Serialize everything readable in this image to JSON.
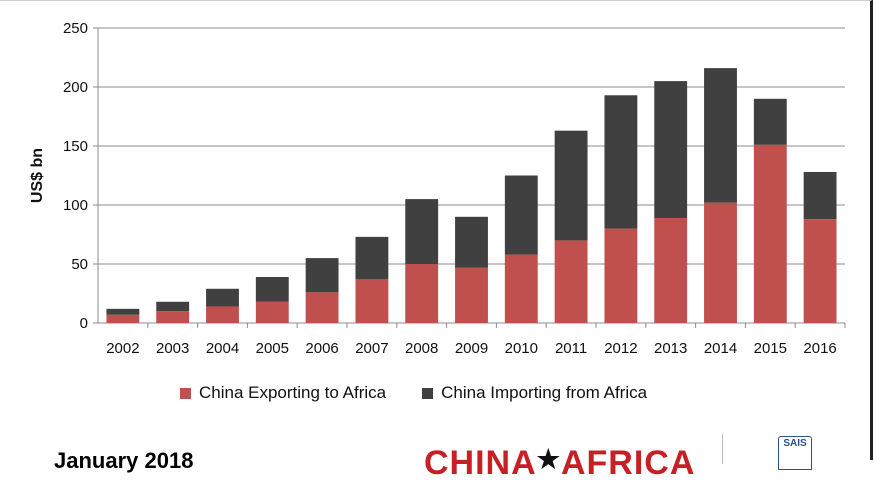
{
  "chart_data": {
    "type": "bar",
    "stacked": true,
    "title": "",
    "xlabel": "",
    "ylabel": "US$ bn",
    "ylim": [
      0,
      250
    ],
    "yticks": [
      0,
      50,
      100,
      150,
      200,
      250
    ],
    "grid": true,
    "legend_position": "bottom",
    "categories": [
      "2002",
      "2003",
      "2004",
      "2005",
      "2006",
      "2007",
      "2008",
      "2009",
      "2010",
      "2011",
      "2012",
      "2013",
      "2014",
      "2015",
      "2016"
    ],
    "series": [
      {
        "name": "China Exporting to Africa",
        "color": "#c0504d",
        "values": [
          7,
          10,
          14,
          18,
          26,
          37,
          50,
          47,
          58,
          70,
          80,
          89,
          102,
          151,
          88
        ]
      },
      {
        "name": "China Importing from Africa",
        "color": "#404040",
        "values": [
          5,
          8,
          15,
          21,
          29,
          36,
          55,
          43,
          67,
          93,
          113,
          116,
          114,
          39,
          40
        ]
      }
    ]
  },
  "footer": {
    "date_text": "January 2018",
    "logo_left": "CHINA",
    "logo_star": "★",
    "logo_right": "AFRICA",
    "seal_text": "SAIS"
  }
}
